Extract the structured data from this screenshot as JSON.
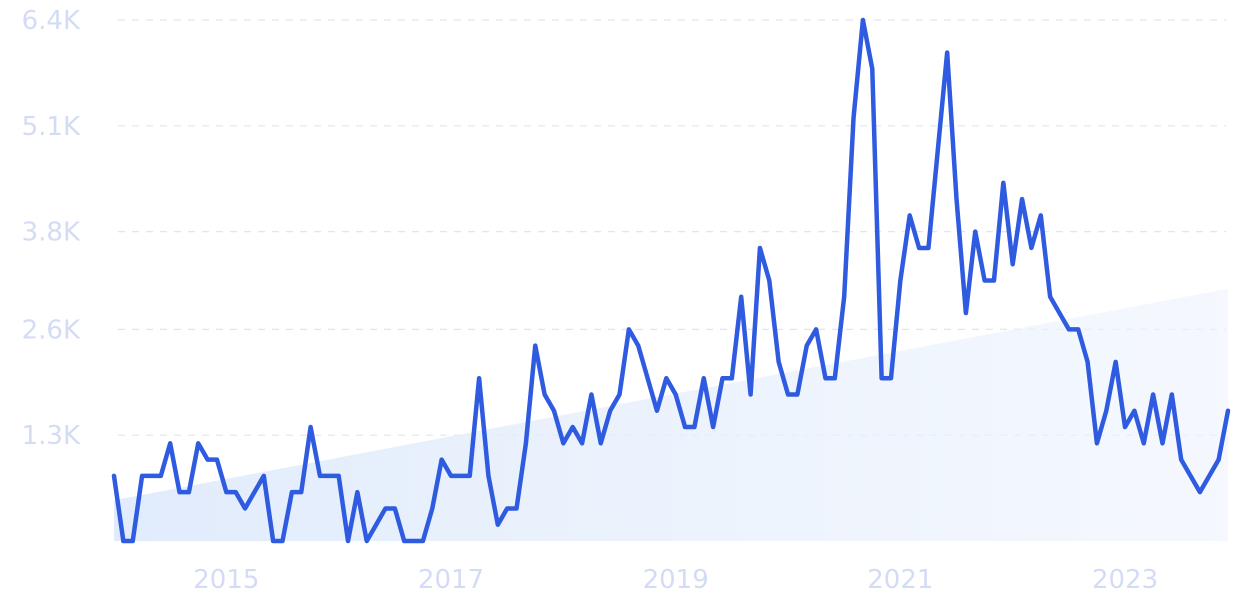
{
  "chart_data": {
    "type": "line",
    "title": "",
    "xlabel": "",
    "ylabel": "",
    "grid": true,
    "ylim": [
      0,
      6400
    ],
    "xlim": [
      "2014-01",
      "2023-12"
    ],
    "y_ticks": [
      {
        "value": 1300,
        "label": "1.3K"
      },
      {
        "value": 2600,
        "label": "2.6K"
      },
      {
        "value": 3800,
        "label": "3.8K"
      },
      {
        "value": 5100,
        "label": "5.1K"
      },
      {
        "value": 6400,
        "label": "6.4K"
      }
    ],
    "x_ticks": [
      {
        "value": "2015-01",
        "label": "2015"
      },
      {
        "value": "2017-01",
        "label": "2017"
      },
      {
        "value": "2019-01",
        "label": "2019"
      },
      {
        "value": "2021-01",
        "label": "2021"
      },
      {
        "value": "2023-01",
        "label": "2023"
      }
    ],
    "series": [
      {
        "color": "#2f5be0",
        "points": [
          [
            "2014-01",
            800
          ],
          [
            "2014-02",
            0
          ],
          [
            "2014-03",
            0
          ],
          [
            "2014-04",
            800
          ],
          [
            "2014-05",
            800
          ],
          [
            "2014-06",
            800
          ],
          [
            "2014-07",
            1200
          ],
          [
            "2014-08",
            600
          ],
          [
            "2014-09",
            600
          ],
          [
            "2014-10",
            1200
          ],
          [
            "2014-11",
            1000
          ],
          [
            "2014-12",
            1000
          ],
          [
            "2015-01",
            600
          ],
          [
            "2015-02",
            600
          ],
          [
            "2015-03",
            400
          ],
          [
            "2015-04",
            600
          ],
          [
            "2015-05",
            800
          ],
          [
            "2015-06",
            0
          ],
          [
            "2015-07",
            0
          ],
          [
            "2015-08",
            600
          ],
          [
            "2015-09",
            600
          ],
          [
            "2015-10",
            1400
          ],
          [
            "2015-11",
            800
          ],
          [
            "2015-12",
            800
          ],
          [
            "2016-01",
            800
          ],
          [
            "2016-02",
            0
          ],
          [
            "2016-03",
            600
          ],
          [
            "2016-04",
            0
          ],
          [
            "2016-05",
            200
          ],
          [
            "2016-06",
            400
          ],
          [
            "2016-07",
            400
          ],
          [
            "2016-08",
            0
          ],
          [
            "2016-09",
            0
          ],
          [
            "2016-10",
            0
          ],
          [
            "2016-11",
            400
          ],
          [
            "2016-12",
            1000
          ],
          [
            "2017-01",
            800
          ],
          [
            "2017-02",
            800
          ],
          [
            "2017-03",
            800
          ],
          [
            "2017-04",
            2000
          ],
          [
            "2017-05",
            800
          ],
          [
            "2017-06",
            200
          ],
          [
            "2017-07",
            400
          ],
          [
            "2017-08",
            400
          ],
          [
            "2017-09",
            1200
          ],
          [
            "2017-10",
            2400
          ],
          [
            "2017-11",
            1800
          ],
          [
            "2017-12",
            1600
          ],
          [
            "2018-01",
            1200
          ],
          [
            "2018-02",
            1400
          ],
          [
            "2018-03",
            1200
          ],
          [
            "2018-04",
            1800
          ],
          [
            "2018-05",
            1200
          ],
          [
            "2018-06",
            1600
          ],
          [
            "2018-07",
            1800
          ],
          [
            "2018-08",
            2600
          ],
          [
            "2018-09",
            2400
          ],
          [
            "2018-10",
            2000
          ],
          [
            "2018-11",
            1600
          ],
          [
            "2018-12",
            2000
          ],
          [
            "2019-01",
            1800
          ],
          [
            "2019-02",
            1400
          ],
          [
            "2019-03",
            1400
          ],
          [
            "2019-04",
            2000
          ],
          [
            "2019-05",
            1400
          ],
          [
            "2019-06",
            2000
          ],
          [
            "2019-07",
            2000
          ],
          [
            "2019-08",
            3000
          ],
          [
            "2019-09",
            1800
          ],
          [
            "2019-10",
            3600
          ],
          [
            "2019-11",
            3200
          ],
          [
            "2019-12",
            2200
          ],
          [
            "2020-01",
            1800
          ],
          [
            "2020-02",
            1800
          ],
          [
            "2020-03",
            2400
          ],
          [
            "2020-04",
            2600
          ],
          [
            "2020-05",
            2000
          ],
          [
            "2020-06",
            2000
          ],
          [
            "2020-07",
            3000
          ],
          [
            "2020-08",
            5200
          ],
          [
            "2020-09",
            6400
          ],
          [
            "2020-10",
            5800
          ],
          [
            "2020-11",
            2000
          ],
          [
            "2020-12",
            2000
          ],
          [
            "2021-01",
            3200
          ],
          [
            "2021-02",
            4000
          ],
          [
            "2021-03",
            3600
          ],
          [
            "2021-04",
            3600
          ],
          [
            "2021-05",
            4800
          ],
          [
            "2021-06",
            6000
          ],
          [
            "2021-07",
            4200
          ],
          [
            "2021-08",
            2800
          ],
          [
            "2021-09",
            3800
          ],
          [
            "2021-10",
            3200
          ],
          [
            "2021-11",
            3200
          ],
          [
            "2021-12",
            4400
          ],
          [
            "2022-01",
            3400
          ],
          [
            "2022-02",
            4200
          ],
          [
            "2022-03",
            3600
          ],
          [
            "2022-04",
            4000
          ],
          [
            "2022-05",
            3000
          ],
          [
            "2022-06",
            2800
          ],
          [
            "2022-07",
            2600
          ],
          [
            "2022-08",
            2600
          ],
          [
            "2022-09",
            2200
          ],
          [
            "2022-10",
            1200
          ],
          [
            "2022-11",
            1600
          ],
          [
            "2022-12",
            2200
          ],
          [
            "2023-01",
            1400
          ],
          [
            "2023-02",
            1600
          ],
          [
            "2023-03",
            1200
          ],
          [
            "2023-04",
            1800
          ],
          [
            "2023-05",
            1200
          ],
          [
            "2023-06",
            1800
          ],
          [
            "2023-07",
            1000
          ],
          [
            "2023-08",
            800
          ],
          [
            "2023-09",
            600
          ],
          [
            "2023-10",
            800
          ],
          [
            "2023-11",
            1000
          ],
          [
            "2023-12",
            1600
          ]
        ]
      }
    ],
    "trend": {
      "start": [
        "2014-01",
        500
      ],
      "end": [
        "2023-12",
        3100
      ]
    }
  }
}
